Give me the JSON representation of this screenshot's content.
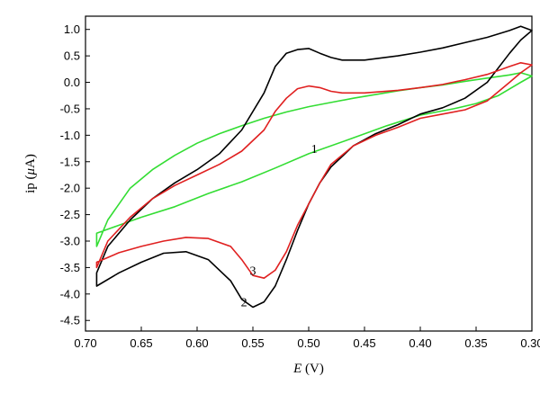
{
  "chart_data": {
    "type": "line",
    "xlabel_var": "E",
    "xlabel_unit": " (V)",
    "ylabel_pre": "ip (",
    "ylabel_var": "μ",
    "ylabel_post": "A)",
    "xlim": [
      0.7,
      0.3
    ],
    "ylim": [
      -4.7,
      1.25
    ],
    "x_ticks": [
      0.7,
      0.65,
      0.6,
      0.55,
      0.5,
      0.45,
      0.4,
      0.35,
      0.3
    ],
    "x_tick_labels": [
      "0.70",
      "0.65",
      "0.60",
      "0.55",
      "0.50",
      "0.45",
      "0.40",
      "0.35",
      "0.30"
    ],
    "y_ticks": [
      1.0,
      0.5,
      0.0,
      -0.5,
      -1.0,
      -1.5,
      -2.0,
      -2.5,
      -3.0,
      -3.5,
      -4.0,
      -4.5
    ],
    "y_tick_labels": [
      "1.0",
      "0.5",
      "0.0",
      "-0.5",
      "-1.0",
      "-1.5",
      "-2.0",
      "-2.5",
      "-3.0",
      "-3.5",
      "-4.0",
      "-4.5"
    ],
    "grid": false,
    "series": [
      {
        "name": "1",
        "color": "#33dd33",
        "label_at": [
          0.495,
          -1.25
        ],
        "points": [
          [
            0.69,
            -3.1
          ],
          [
            0.68,
            -2.6
          ],
          [
            0.66,
            -2.0
          ],
          [
            0.64,
            -1.65
          ],
          [
            0.62,
            -1.38
          ],
          [
            0.6,
            -1.15
          ],
          [
            0.58,
            -0.97
          ],
          [
            0.56,
            -0.82
          ],
          [
            0.54,
            -0.68
          ],
          [
            0.52,
            -0.56
          ],
          [
            0.5,
            -0.46
          ],
          [
            0.48,
            -0.38
          ],
          [
            0.46,
            -0.3
          ],
          [
            0.44,
            -0.23
          ],
          [
            0.42,
            -0.16
          ],
          [
            0.4,
            -0.1
          ],
          [
            0.38,
            -0.05
          ],
          [
            0.36,
            0.02
          ],
          [
            0.34,
            0.08
          ],
          [
            0.32,
            0.14
          ],
          [
            0.31,
            0.18
          ],
          [
            0.3,
            0.12
          ],
          [
            0.31,
            0.0
          ],
          [
            0.33,
            -0.25
          ],
          [
            0.35,
            -0.4
          ],
          [
            0.37,
            -0.5
          ],
          [
            0.4,
            -0.62
          ],
          [
            0.43,
            -0.82
          ],
          [
            0.46,
            -1.05
          ],
          [
            0.5,
            -1.35
          ],
          [
            0.53,
            -1.62
          ],
          [
            0.56,
            -1.88
          ],
          [
            0.59,
            -2.1
          ],
          [
            0.62,
            -2.35
          ],
          [
            0.65,
            -2.55
          ],
          [
            0.67,
            -2.7
          ],
          [
            0.69,
            -2.85
          ]
        ]
      },
      {
        "name": "2",
        "color": "#000000",
        "label_at": [
          0.558,
          -4.15
        ],
        "points": [
          [
            0.69,
            -3.6
          ],
          [
            0.68,
            -3.1
          ],
          [
            0.66,
            -2.6
          ],
          [
            0.64,
            -2.2
          ],
          [
            0.62,
            -1.9
          ],
          [
            0.6,
            -1.65
          ],
          [
            0.58,
            -1.35
          ],
          [
            0.56,
            -0.9
          ],
          [
            0.54,
            -0.2
          ],
          [
            0.53,
            0.3
          ],
          [
            0.52,
            0.55
          ],
          [
            0.51,
            0.62
          ],
          [
            0.5,
            0.64
          ],
          [
            0.49,
            0.55
          ],
          [
            0.48,
            0.47
          ],
          [
            0.47,
            0.42
          ],
          [
            0.45,
            0.42
          ],
          [
            0.42,
            0.5
          ],
          [
            0.4,
            0.57
          ],
          [
            0.38,
            0.65
          ],
          [
            0.36,
            0.75
          ],
          [
            0.34,
            0.85
          ],
          [
            0.32,
            0.98
          ],
          [
            0.31,
            1.06
          ],
          [
            0.3,
            0.98
          ],
          [
            0.31,
            0.8
          ],
          [
            0.32,
            0.55
          ],
          [
            0.34,
            0.0
          ],
          [
            0.36,
            -0.3
          ],
          [
            0.38,
            -0.48
          ],
          [
            0.4,
            -0.6
          ],
          [
            0.42,
            -0.8
          ],
          [
            0.44,
            -0.97
          ],
          [
            0.46,
            -1.2
          ],
          [
            0.48,
            -1.6
          ],
          [
            0.49,
            -1.9
          ],
          [
            0.5,
            -2.3
          ],
          [
            0.51,
            -2.8
          ],
          [
            0.52,
            -3.35
          ],
          [
            0.53,
            -3.85
          ],
          [
            0.54,
            -4.15
          ],
          [
            0.55,
            -4.25
          ],
          [
            0.56,
            -4.1
          ],
          [
            0.57,
            -3.75
          ],
          [
            0.59,
            -3.35
          ],
          [
            0.61,
            -3.2
          ],
          [
            0.63,
            -3.23
          ],
          [
            0.65,
            -3.4
          ],
          [
            0.67,
            -3.6
          ],
          [
            0.69,
            -3.85
          ]
        ]
      },
      {
        "name": "3",
        "color": "#e02020",
        "label_at": [
          0.55,
          -3.55
        ],
        "points": [
          [
            0.69,
            -3.5
          ],
          [
            0.68,
            -3.0
          ],
          [
            0.66,
            -2.55
          ],
          [
            0.64,
            -2.2
          ],
          [
            0.62,
            -1.95
          ],
          [
            0.6,
            -1.75
          ],
          [
            0.58,
            -1.55
          ],
          [
            0.56,
            -1.3
          ],
          [
            0.54,
            -0.9
          ],
          [
            0.53,
            -0.55
          ],
          [
            0.52,
            -0.3
          ],
          [
            0.51,
            -0.12
          ],
          [
            0.5,
            -0.07
          ],
          [
            0.49,
            -0.1
          ],
          [
            0.48,
            -0.17
          ],
          [
            0.47,
            -0.2
          ],
          [
            0.45,
            -0.2
          ],
          [
            0.42,
            -0.15
          ],
          [
            0.4,
            -0.1
          ],
          [
            0.38,
            -0.04
          ],
          [
            0.36,
            0.05
          ],
          [
            0.34,
            0.15
          ],
          [
            0.32,
            0.3
          ],
          [
            0.31,
            0.37
          ],
          [
            0.3,
            0.33
          ],
          [
            0.31,
            0.18
          ],
          [
            0.32,
            0.0
          ],
          [
            0.34,
            -0.35
          ],
          [
            0.36,
            -0.52
          ],
          [
            0.38,
            -0.6
          ],
          [
            0.4,
            -0.68
          ],
          [
            0.42,
            -0.85
          ],
          [
            0.44,
            -1.0
          ],
          [
            0.46,
            -1.2
          ],
          [
            0.48,
            -1.55
          ],
          [
            0.49,
            -1.9
          ],
          [
            0.5,
            -2.3
          ],
          [
            0.51,
            -2.7
          ],
          [
            0.52,
            -3.2
          ],
          [
            0.53,
            -3.55
          ],
          [
            0.54,
            -3.7
          ],
          [
            0.55,
            -3.65
          ],
          [
            0.56,
            -3.35
          ],
          [
            0.57,
            -3.1
          ],
          [
            0.59,
            -2.95
          ],
          [
            0.61,
            -2.93
          ],
          [
            0.63,
            -3.0
          ],
          [
            0.65,
            -3.1
          ],
          [
            0.67,
            -3.22
          ],
          [
            0.69,
            -3.4
          ]
        ]
      }
    ]
  }
}
